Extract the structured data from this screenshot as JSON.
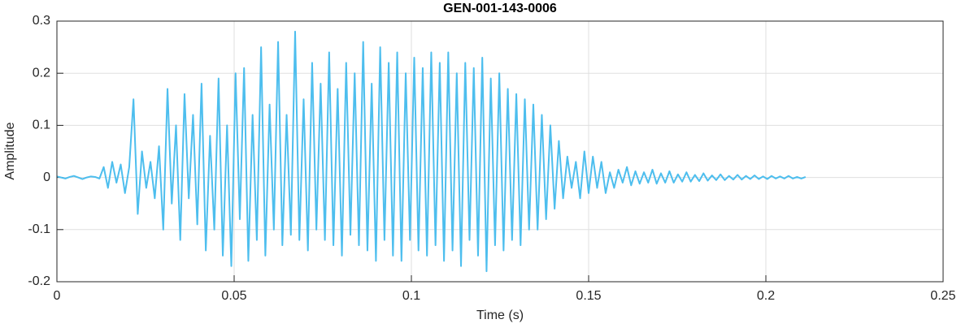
{
  "chart_data": {
    "type": "line",
    "title": "GEN-001-143-0006",
    "xlabel": "Time (s)",
    "ylabel": "Amplitude",
    "color": "#4dbeee",
    "grid": true,
    "xlim": [
      0,
      0.25
    ],
    "xticks": [
      0,
      0.05,
      0.1,
      0.15,
      0.2,
      0.25
    ],
    "ylim": [
      -0.2,
      0.3
    ],
    "yticks": [
      -0.2,
      -0.1,
      0,
      0.1,
      0.2,
      0.3
    ],
    "x": [
      0,
      0.0012,
      0.0024,
      0.0036,
      0.0048,
      0.006,
      0.0072,
      0.0084,
      0.0096,
      0.0108,
      0.012,
      0.0132,
      0.0144,
      0.0156,
      0.0168,
      0.018,
      0.0192,
      0.0204,
      0.0216,
      0.0228,
      0.024,
      0.0252,
      0.0264,
      0.0276,
      0.0288,
      0.03,
      0.0312,
      0.0324,
      0.0336,
      0.0348,
      0.036,
      0.0372,
      0.0384,
      0.0396,
      0.0408,
      0.042,
      0.0432,
      0.0444,
      0.0456,
      0.0468,
      0.048,
      0.0492,
      0.0504,
      0.0516,
      0.0528,
      0.054,
      0.0552,
      0.0564,
      0.0576,
      0.0588,
      0.06,
      0.0612,
      0.0624,
      0.0636,
      0.0648,
      0.066,
      0.0672,
      0.0684,
      0.0696,
      0.0708,
      0.072,
      0.0732,
      0.0744,
      0.0756,
      0.0768,
      0.078,
      0.0792,
      0.0804,
      0.0816,
      0.0828,
      0.084,
      0.0852,
      0.0864,
      0.0876,
      0.0888,
      0.09,
      0.0912,
      0.0924,
      0.0936,
      0.0948,
      0.096,
      0.0972,
      0.0984,
      0.0996,
      0.1008,
      0.102,
      0.1032,
      0.1044,
      0.1056,
      0.1068,
      0.108,
      0.1092,
      0.1104,
      0.1116,
      0.1128,
      0.114,
      0.1152,
      0.1164,
      0.1176,
      0.1188,
      0.12,
      0.1212,
      0.1224,
      0.1236,
      0.1248,
      0.126,
      0.1272,
      0.1284,
      0.1296,
      0.1308,
      0.132,
      0.1332,
      0.1344,
      0.1356,
      0.1368,
      0.138,
      0.1392,
      0.1404,
      0.1416,
      0.1428,
      0.144,
      0.1452,
      0.1464,
      0.1476,
      0.1488,
      0.15,
      0.1512,
      0.1524,
      0.1536,
      0.1548,
      0.156,
      0.1572,
      0.1584,
      0.1596,
      0.1608,
      0.162,
      0.1632,
      0.1644,
      0.1656,
      0.1668,
      0.168,
      0.1692,
      0.1704,
      0.1716,
      0.1728,
      0.174,
      0.1752,
      0.1764,
      0.1776,
      0.1788,
      0.18,
      0.1812,
      0.1824,
      0.1836,
      0.1848,
      0.186,
      0.1872,
      0.1884,
      0.1896,
      0.1908,
      0.192,
      0.1932,
      0.1944,
      0.1956,
      0.1968,
      0.198,
      0.1992,
      0.2004,
      0.2016,
      0.2028,
      0.204,
      0.2052,
      0.2064,
      0.2076,
      0.2088,
      0.21,
      0.2112
    ],
    "values": [
      0.002,
      0,
      -0.002,
      0.001,
      0.003,
      0,
      -0.003,
      0,
      0.002,
      0.001,
      -0.002,
      0.02,
      -0.02,
      0.03,
      -0.01,
      0.025,
      -0.03,
      0.02,
      0.15,
      -0.07,
      0.05,
      -0.02,
      0.03,
      -0.04,
      0.06,
      -0.1,
      0.17,
      -0.05,
      0.1,
      -0.12,
      0.16,
      -0.04,
      0.12,
      -0.09,
      0.18,
      -0.14,
      0.08,
      -0.1,
      0.19,
      -0.15,
      0.1,
      -0.17,
      0.2,
      -0.08,
      0.21,
      -0.16,
      0.12,
      -0.12,
      0.25,
      -0.15,
      0.14,
      -0.1,
      0.26,
      -0.13,
      0.12,
      -0.11,
      0.28,
      -0.12,
      0.15,
      -0.14,
      0.22,
      -0.1,
      0.18,
      -0.12,
      0.24,
      -0.13,
      0.17,
      -0.15,
      0.22,
      -0.11,
      0.2,
      -0.13,
      0.26,
      -0.14,
      0.18,
      -0.16,
      0.25,
      -0.12,
      0.22,
      -0.15,
      0.24,
      -0.16,
      0.2,
      -0.12,
      0.23,
      -0.14,
      0.21,
      -0.15,
      0.24,
      -0.13,
      0.22,
      -0.16,
      0.24,
      -0.14,
      0.2,
      -0.17,
      0.22,
      -0.12,
      0.21,
      -0.15,
      0.23,
      -0.18,
      0.19,
      -0.13,
      0.2,
      -0.14,
      0.17,
      -0.12,
      0.16,
      -0.13,
      0.15,
      -0.1,
      0.14,
      -0.1,
      0.12,
      -0.08,
      0.1,
      -0.06,
      0.07,
      -0.04,
      0.04,
      -0.02,
      0.03,
      -0.04,
      0.05,
      -0.03,
      0.04,
      -0.02,
      0.03,
      -0.03,
      0.01,
      -0.02,
      0.015,
      -0.01,
      0.02,
      -0.015,
      0.012,
      -0.012,
      0.01,
      -0.01,
      0.015,
      -0.012,
      0.008,
      -0.01,
      0.012,
      -0.01,
      0.006,
      -0.008,
      0.01,
      -0.008,
      0.005,
      -0.007,
      0.008,
      -0.006,
      0.004,
      -0.005,
      0.006,
      -0.005,
      0.003,
      -0.004,
      0.005,
      -0.004,
      0.003,
      -0.003,
      0.004,
      -0.003,
      0.002,
      -0.003,
      0.003,
      -0.002,
      0.002,
      -0.002,
      0.003,
      -0.002,
      0.001,
      -0.002,
      0.001
    ]
  }
}
